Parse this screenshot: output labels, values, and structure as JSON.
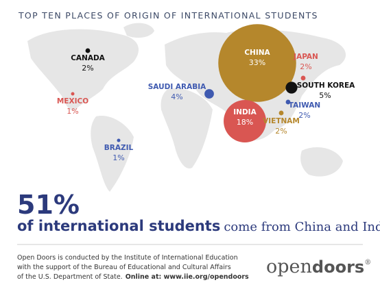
{
  "chart_data": {
    "type": "bubble",
    "title": "TOP TEN PLACES OF ORIGIN OF INTERNATIONAL STUDENTS",
    "categories": [
      "CHINA",
      "INDIA",
      "SOUTH KOREA",
      "SAUDI ARABIA",
      "CANADA",
      "VIETNAM",
      "TAIWAN",
      "JAPAN",
      "MEXICO",
      "BRAZIL"
    ],
    "values": [
      33,
      18,
      5,
      4,
      2,
      2,
      2,
      2,
      1,
      1
    ],
    "value_labels": [
      "33%",
      "18%",
      "5%",
      "4%",
      "2%",
      "2%",
      "2%",
      "2%",
      "1%",
      "1%"
    ],
    "colors": [
      "#b5872c",
      "#d95652",
      "#111111",
      "#3f5ab0",
      "#111111",
      "#b5872c",
      "#3f5ab0",
      "#d95652",
      "#d95652",
      "#3f5ab0"
    ]
  },
  "headline": {
    "value": "51%",
    "bold": "of international students",
    "rest": "come from China and India."
  },
  "footer": {
    "lines": [
      "Open Doors is conducted by the Institute of International Education",
      "with the support of the Bureau of Educational and Cultural Affairs",
      "of the U.S. Department of State."
    ],
    "online": "Online at: www.iie.org/opendoors",
    "logo": [
      "open",
      "doors",
      "®"
    ]
  }
}
